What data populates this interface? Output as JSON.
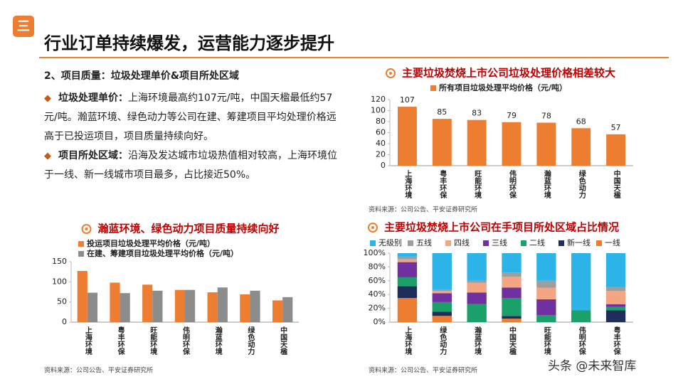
{
  "header": {
    "badge": "三",
    "title": "行业订单持续爆发，运营能力逐步提升"
  },
  "text": {
    "subtitle": "2、项目质量：垃圾处理单价&项目所处区域",
    "bullets": [
      {
        "label": "垃圾处理单价：",
        "body": "上海环境最高约107元/吨，中国天楹最低约57元/吨。瀚蓝环境、绿色动力等公司在建、筹建项目平均处理价格远高于已投运项目，项目质量持续向好。"
      },
      {
        "label": "项目所处区域：",
        "body": "沿海及发达城市垃圾热值相对较高，上海环境位于一线、新一线城市项目最多，占比接近50%。"
      }
    ]
  },
  "watermark": "头条 @未来智库",
  "chart_data": [
    {
      "type": "bar",
      "title": "主要垃圾焚烧上市公司垃圾处理价格相差较大",
      "source": "资料来源：公司公告、平安证券研究所",
      "categories": [
        "上海环境",
        "粤丰环保",
        "旺能环境",
        "伟明环保",
        "瀚蓝环境",
        "绿色动力",
        "中国天楹"
      ],
      "series": [
        {
          "name": "所有项目垃圾处理平均价格（元/吨）",
          "color": "#ed7d31",
          "values": [
            107,
            85,
            83,
            79,
            78,
            68,
            57
          ]
        }
      ],
      "ylim": [
        0,
        120
      ],
      "yticks": [
        0,
        20,
        40,
        60,
        80,
        100,
        120
      ],
      "data_labels": true,
      "legend": "top"
    },
    {
      "type": "bar",
      "title": "瀚蓝环境、绿色动力项目质量持续向好",
      "source": "资料来源：公司公告、平安证券研究所",
      "categories": [
        "上海环境",
        "粤丰环保",
        "旺能环境",
        "伟明环保",
        "瀚蓝环境",
        "绿色动力",
        "中国天楹"
      ],
      "series": [
        {
          "name": "投运项目垃圾处理平均价格（元/吨）",
          "color": "#ed7d31",
          "values": [
            127,
            98,
            93,
            80,
            74,
            69,
            54
          ]
        },
        {
          "name": "在建、筹建项目垃圾处理平均价格（元/吨）",
          "color": "#8c8c8c",
          "values": [
            73,
            72,
            78,
            80,
            86,
            78,
            62
          ]
        }
      ],
      "ylim": [
        0,
        150
      ],
      "yticks": [
        0,
        50,
        100,
        150
      ],
      "legend": "top"
    },
    {
      "type": "stacked_bar",
      "title": "主要垃圾焚烧上市公司在手项目所处区域占比情况",
      "source": "资料来源：公司公告、平安证券研究所",
      "categories": [
        "上海环境",
        "绿色动力",
        "瀚蓝环境",
        "中国天楹",
        "旺能环境",
        "伟明环保",
        "粤丰环保"
      ],
      "series": [
        {
          "name": "无级别",
          "color": "#2cb3e8",
          "values": [
            5,
            53,
            40,
            28,
            40,
            83,
            49
          ]
        },
        {
          "name": "五线",
          "color": "#9e9e9e",
          "values": [
            4,
            2,
            3,
            6,
            10,
            0,
            6
          ]
        },
        {
          "name": "四线",
          "color": "#f4a582",
          "values": [
            4,
            3,
            14,
            16,
            17,
            0,
            19
          ]
        },
        {
          "name": "三线",
          "color": "#7030a0",
          "values": [
            22,
            13,
            17,
            15,
            23,
            0,
            4
          ]
        },
        {
          "name": "二线",
          "color": "#1aa068",
          "values": [
            13,
            14,
            26,
            26,
            10,
            17,
            5
          ]
        },
        {
          "name": "新一线",
          "color": "#1f2d5a",
          "values": [
            17,
            6,
            0,
            4,
            0,
            0,
            17
          ]
        },
        {
          "name": "一线",
          "color": "#ed7d31",
          "values": [
            35,
            9,
            0,
            5,
            0,
            0,
            0
          ]
        }
      ],
      "ylim": [
        0,
        100
      ],
      "yticks": [
        {
          "value": 0,
          "label": "0%"
        },
        {
          "value": 20,
          "label": "20%"
        },
        {
          "value": 40,
          "label": "40%"
        },
        {
          "value": 60,
          "label": "60%"
        },
        {
          "value": 80,
          "label": "80%"
        },
        {
          "value": 100,
          "label": "100%"
        }
      ],
      "legend": "top"
    }
  ]
}
